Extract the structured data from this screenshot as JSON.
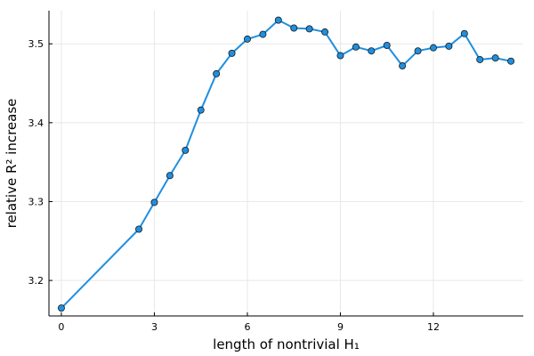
{
  "chart_data": {
    "type": "line",
    "xlabel": "length of nontrivial H₁",
    "ylabel": "relative R² increase",
    "xlim": [
      -0.4,
      14.9
    ],
    "ylim": [
      3.155,
      3.542
    ],
    "xticks": [
      0,
      3,
      6,
      9,
      12
    ],
    "yticks": [
      3.2,
      3.3,
      3.4,
      3.5
    ],
    "xtick_labels": [
      "0",
      "3",
      "6",
      "9",
      "12"
    ],
    "ytick_labels": [
      "3.2",
      "3.3",
      "3.4",
      "3.5"
    ],
    "grid": true,
    "legend": "none",
    "series": [
      {
        "color": "#1f8fdf",
        "marker": "circle",
        "x": [
          0,
          2.5,
          3,
          3.5,
          4,
          4.5,
          5,
          5.5,
          6,
          6.5,
          7,
          7.5,
          8,
          8.5,
          9,
          9.5,
          10,
          10.5,
          11,
          11.5,
          12,
          12.5,
          13,
          13.5,
          14,
          14.5
        ],
        "y": [
          3.165,
          3.265,
          3.299,
          3.333,
          3.365,
          3.416,
          3.462,
          3.488,
          3.506,
          3.512,
          3.53,
          3.52,
          3.519,
          3.515,
          3.485,
          3.496,
          3.491,
          3.498,
          3.472,
          3.491,
          3.495,
          3.497,
          3.513,
          3.48,
          3.482,
          3.478
        ]
      }
    ]
  }
}
